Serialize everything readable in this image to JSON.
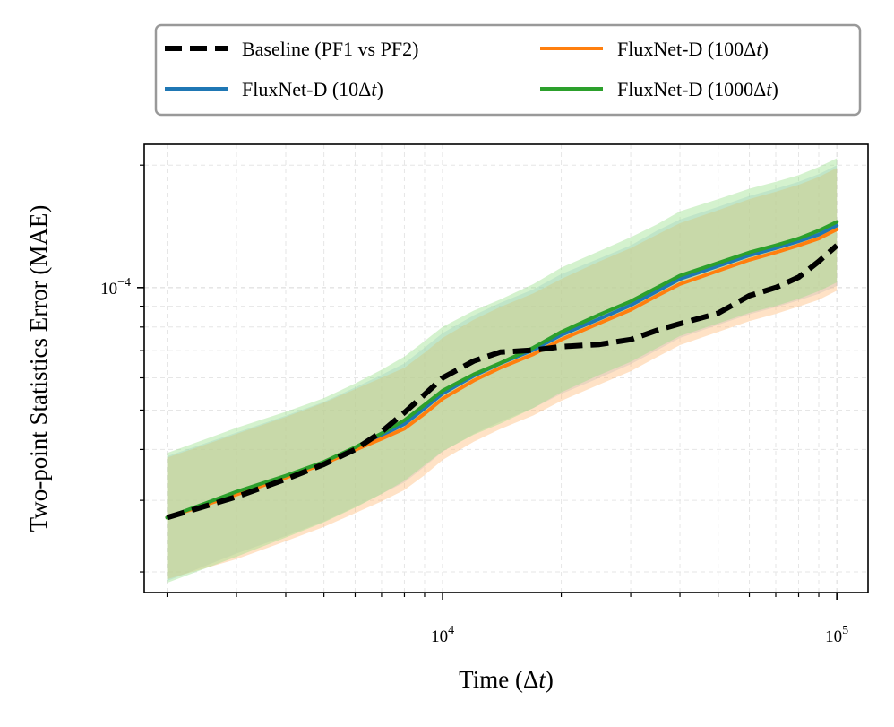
{
  "chart_data": {
    "type": "line",
    "xscale": "log",
    "yscale": "log",
    "xlabel": "Time (Δt)",
    "ylabel": "Two-point Statistics Error (MAE)",
    "xlim": [
      1750,
      120000
    ],
    "ylim": [
      1.78e-05,
      0.000225
    ],
    "x_ticks": [
      {
        "value": 10000,
        "base": "10",
        "exp": "4"
      },
      {
        "value": 100000,
        "base": "10",
        "exp": "5"
      }
    ],
    "y_ticks": [
      {
        "value": 0.0001,
        "base": "10",
        "exp": "−4"
      }
    ],
    "grid": true,
    "legend": {
      "placement": "top, outside, 2 columns",
      "entries": [
        {
          "series": 0,
          "pre": "Baseline (PF1 vs PF2)",
          "italic": "",
          "post": ""
        },
        {
          "series": 1,
          "pre": "FluxNet-D (10Δ",
          "italic": "t",
          "post": ")"
        },
        {
          "series": 2,
          "pre": "FluxNet-D (100Δ",
          "italic": "t",
          "post": ")"
        },
        {
          "series": 3,
          "pre": "FluxNet-D (1000Δ",
          "italic": "t",
          "post": ")"
        }
      ]
    },
    "x": [
      2000,
      3000,
      4000,
      5000,
      6000,
      7000,
      8000,
      9000,
      10000,
      12000,
      14000,
      17000,
      20000,
      25000,
      30000,
      35000,
      40000,
      50000,
      60000,
      70000,
      80000,
      90000,
      100000
    ],
    "series": [
      {
        "name": "Baseline (PF1 vs PF2)",
        "color": "#000000",
        "dashed": true,
        "band": false,
        "values": [
          2.72e-05,
          3.06e-05,
          3.38e-05,
          3.68e-05,
          4e-05,
          4.42e-05,
          4.93e-05,
          5.46e-05,
          6e-05,
          6.6e-05,
          6.94e-05,
          7.02e-05,
          7.16e-05,
          7.25e-05,
          7.45e-05,
          7.85e-05,
          8.15e-05,
          8.65e-05,
          9.55e-05,
          0.0001,
          0.000106,
          0.000116,
          0.000127
        ]
      },
      {
        "name": "FluxNet-D (10Δt)",
        "color": "#1f77b4",
        "dashed": false,
        "band": true,
        "band_fill": "#aec7e8",
        "values": [
          2.72e-05,
          3.12e-05,
          3.43e-05,
          3.71e-05,
          4.03e-05,
          4.33e-05,
          4.62e-05,
          5.05e-05,
          5.49e-05,
          6.07e-05,
          6.51e-05,
          7.03e-05,
          7.65e-05,
          8.38e-05,
          9.05e-05,
          9.8e-05,
          0.000105,
          0.000113,
          0.00012,
          0.000125,
          0.00013,
          0.000135,
          0.000142
        ],
        "lower": [
          1.9e-05,
          2.22e-05,
          2.45e-05,
          2.66e-05,
          2.89e-05,
          3.11e-05,
          3.32e-05,
          3.63e-05,
          3.95e-05,
          4.37e-05,
          4.68e-05,
          5.06e-05,
          5.48e-05,
          6e-05,
          6.48e-05,
          7.02e-05,
          7.52e-05,
          8.1e-05,
          8.6e-05,
          8.95e-05,
          9.3e-05,
          9.65e-05,
          0.000101
        ],
        "upper": [
          3.85e-05,
          4.4e-05,
          4.84e-05,
          5.24e-05,
          5.68e-05,
          6.1e-05,
          6.51e-05,
          7.12e-05,
          7.73e-05,
          8.55e-05,
          9.17e-05,
          9.9e-05,
          0.000108,
          0.000118,
          0.000127,
          0.000138,
          0.000147,
          0.000158,
          0.000168,
          0.000175,
          0.000182,
          0.00019,
          0.0002
        ]
      },
      {
        "name": "FluxNet-D (100Δt)",
        "color": "#ff7f0e",
        "dashed": false,
        "band": true,
        "band_fill": "#ffbb78",
        "values": [
          2.72e-05,
          3.1e-05,
          3.41e-05,
          3.69e-05,
          3.99e-05,
          4.25e-05,
          4.5e-05,
          4.9e-05,
          5.33e-05,
          5.91e-05,
          6.35e-05,
          6.86e-05,
          7.45e-05,
          8.18e-05,
          8.82e-05,
          9.55e-05,
          0.000102,
          0.00011,
          0.000117,
          0.000122,
          0.000127,
          0.000132,
          0.000139
        ],
        "lower": [
          1.92e-05,
          2.15e-05,
          2.38e-05,
          2.58e-05,
          2.79e-05,
          2.98e-05,
          3.18e-05,
          3.46e-05,
          3.77e-05,
          4.18e-05,
          4.49e-05,
          4.85e-05,
          5.27e-05,
          5.78e-05,
          6.23e-05,
          6.75e-05,
          7.22e-05,
          7.78e-05,
          8.27e-05,
          8.62e-05,
          8.98e-05,
          9.33e-05,
          9.83e-05
        ],
        "upper": [
          3.82e-05,
          4.37e-05,
          4.81e-05,
          5.21e-05,
          5.63e-05,
          6e-05,
          6.35e-05,
          6.92e-05,
          7.52e-05,
          8.34e-05,
          8.96e-05,
          9.68e-05,
          0.000105,
          0.000116,
          0.000125,
          0.000135,
          0.000144,
          0.000155,
          0.000165,
          0.000172,
          0.000179,
          0.000187,
          0.000197
        ]
      },
      {
        "name": "FluxNet-D (1000Δt)",
        "color": "#2ca02c",
        "dashed": false,
        "band": true,
        "band_fill": "#98df8a",
        "values": [
          2.72e-05,
          3.15e-05,
          3.45e-05,
          3.73e-05,
          4.05e-05,
          4.38e-05,
          4.72e-05,
          5.15e-05,
          5.58e-05,
          6.12e-05,
          6.52e-05,
          7.12e-05,
          7.78e-05,
          8.58e-05,
          9.25e-05,
          0.0001,
          0.000107,
          0.000115,
          0.000122,
          0.000127,
          0.000132,
          0.000138,
          0.000145
        ],
        "lower": [
          1.88e-05,
          2.18e-05,
          2.43e-05,
          2.65e-05,
          2.88e-05,
          3.11e-05,
          3.35e-05,
          3.66e-05,
          3.96e-05,
          4.35e-05,
          4.63e-05,
          5.06e-05,
          5.53e-05,
          6.1e-05,
          6.57e-05,
          7.11e-05,
          7.6e-05,
          8.17e-05,
          8.67e-05,
          9.02e-05,
          9.38e-05,
          9.8e-05,
          0.000103
        ],
        "upper": [
          3.92e-05,
          4.52e-05,
          4.95e-05,
          5.35e-05,
          5.81e-05,
          6.28e-05,
          6.77e-05,
          7.39e-05,
          8.01e-05,
          8.78e-05,
          9.35e-05,
          0.000102,
          0.000112,
          0.000123,
          0.000133,
          0.000143,
          0.000154,
          0.000165,
          0.000175,
          0.000182,
          0.000189,
          0.000198,
          0.000208
        ]
      }
    ]
  }
}
